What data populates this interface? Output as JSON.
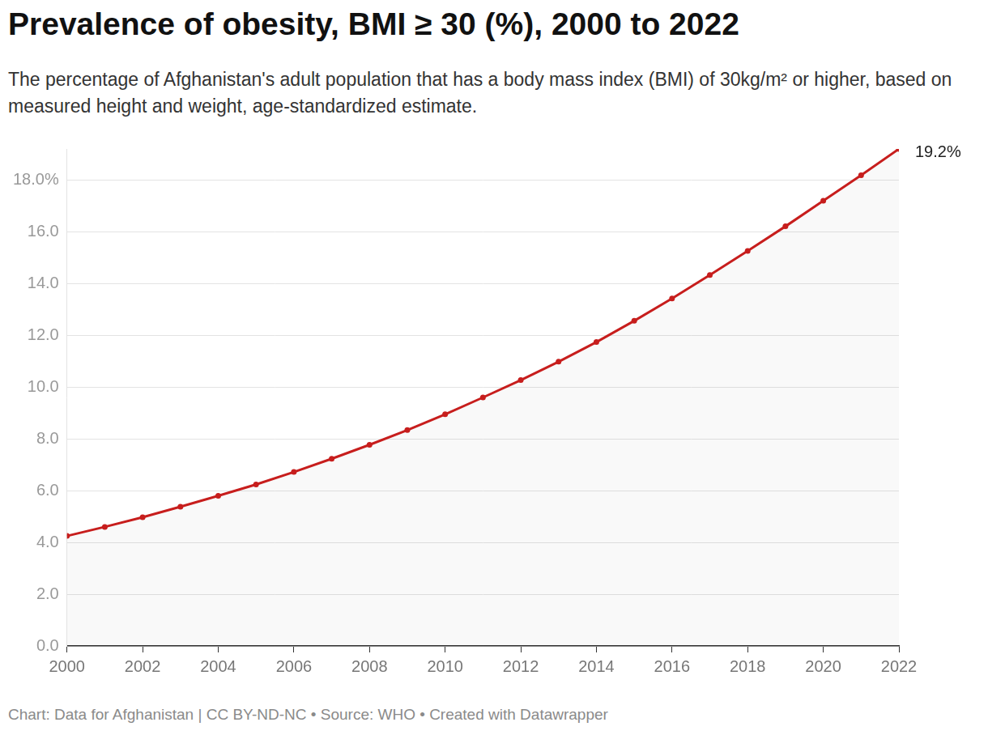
{
  "chart_data": {
    "type": "line",
    "title": "Prevalence of obesity, BMI ≥ 30 (%), 2000 to 2022",
    "subtitle": "The percentage of Afghanistan's adult population that has a body mass index (BMI) of 30kg/m² or higher, based on measured height and weight, age-standardized estimate.",
    "source": "Chart: Data for Afghanistan | CC BY-ND-NC • Source: WHO • Created with Datawrapper",
    "x": [
      2000,
      2001,
      2002,
      2003,
      2004,
      2005,
      2006,
      2007,
      2008,
      2009,
      2010,
      2011,
      2012,
      2013,
      2014,
      2015,
      2016,
      2017,
      2018,
      2019,
      2020,
      2021,
      2022
    ],
    "values": [
      4.25,
      4.6,
      4.97,
      5.38,
      5.8,
      6.24,
      6.72,
      7.23,
      7.77,
      8.34,
      8.95,
      9.6,
      10.27,
      10.98,
      11.74,
      12.56,
      13.42,
      14.33,
      15.26,
      16.21,
      17.2,
      18.18,
      19.2
    ],
    "color": "#c71e1d",
    "marker": "circle",
    "xlim": [
      2000,
      2022
    ],
    "xticks": [
      2000,
      2002,
      2004,
      2006,
      2008,
      2010,
      2012,
      2014,
      2016,
      2018,
      2020,
      2022
    ],
    "ylim": [
      0,
      19.2
    ],
    "yticks": [
      {
        "value": 0,
        "label": "0.0"
      },
      {
        "value": 2,
        "label": "2.0"
      },
      {
        "value": 4,
        "label": "4.0"
      },
      {
        "value": 6,
        "label": "6.0"
      },
      {
        "value": 8,
        "label": "8.0"
      },
      {
        "value": 10,
        "label": "10.0"
      },
      {
        "value": 12,
        "label": "12.0"
      },
      {
        "value": 14,
        "label": "14.0"
      },
      {
        "value": 16,
        "label": "16.0"
      },
      {
        "value": 18,
        "label": "18.0%"
      }
    ],
    "grid": true,
    "annotations": [
      {
        "x": 2022,
        "y": 19.2,
        "text": "19.2%"
      }
    ]
  }
}
